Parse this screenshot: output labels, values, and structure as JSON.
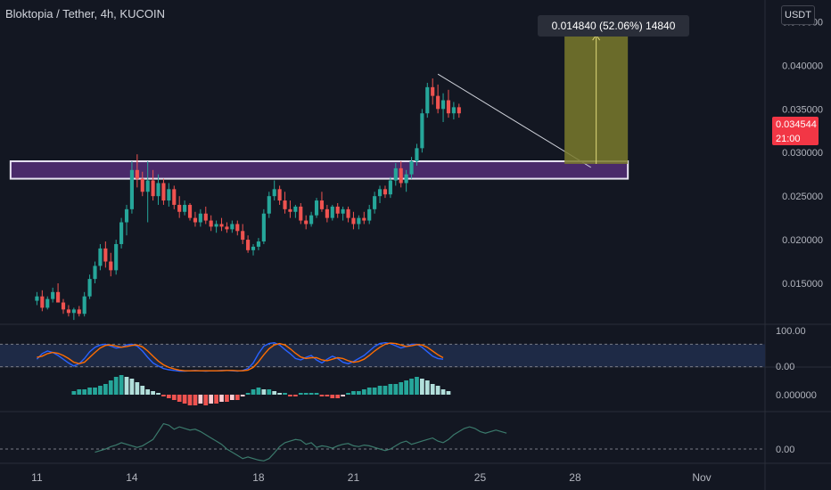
{
  "header": {
    "symbol": "Bloktopia / Tether, 4h, KUCOIN",
    "currency": "USDT"
  },
  "measure_label": "0.014840 (52.06%) 14840",
  "last_price": {
    "value": "0.034544",
    "countdown": "21:00",
    "color": "#f23645"
  },
  "colors": {
    "background": "#131722",
    "up": "#26a69a",
    "down": "#ef5350",
    "zone_fill": "#4a2a6a",
    "zone_border": "#e8e3f2",
    "target_fill": "#7a7a2c",
    "stoch_k": "#2962ff",
    "stoch_d": "#ff6d00",
    "obv_line": "#3b7a6c"
  },
  "chart_data": [
    {
      "type": "candlestick",
      "name": "price",
      "y_ticks": [
        "0.045000",
        "0.040000",
        "0.035000",
        "0.030000",
        "0.025000",
        "0.020000",
        "0.015000"
      ],
      "ylim": [
        0.0103,
        0.0475
      ],
      "x_ticks": [
        "11",
        "14",
        "18",
        "21",
        "25",
        "28",
        "Nov"
      ],
      "x_tick_values": [
        0,
        18,
        42,
        60,
        84,
        102,
        126
      ],
      "xlim": [
        -7,
        138
      ],
      "ohlc": [
        [
          0.013,
          0.014,
          0.0125,
          0.0135
        ],
        [
          0.0135,
          0.0142,
          0.0118,
          0.0122
        ],
        [
          0.0122,
          0.0135,
          0.012,
          0.0132
        ],
        [
          0.0132,
          0.0145,
          0.0128,
          0.014
        ],
        [
          0.014,
          0.015,
          0.013,
          0.0128
        ],
        [
          0.0128,
          0.0132,
          0.0115,
          0.012
        ],
        [
          0.012,
          0.0125,
          0.0112,
          0.0116
        ],
        [
          0.0116,
          0.0122,
          0.0108,
          0.012
        ],
        [
          0.012,
          0.0124,
          0.0112,
          0.0115
        ],
        [
          0.0115,
          0.014,
          0.0112,
          0.0135
        ],
        [
          0.0135,
          0.016,
          0.0132,
          0.0155
        ],
        [
          0.0155,
          0.0175,
          0.015,
          0.017
        ],
        [
          0.017,
          0.0195,
          0.0165,
          0.019
        ],
        [
          0.019,
          0.0198,
          0.0168,
          0.0175
        ],
        [
          0.0175,
          0.0185,
          0.0158,
          0.0165
        ],
        [
          0.0165,
          0.02,
          0.016,
          0.0195
        ],
        [
          0.0195,
          0.0225,
          0.019,
          0.022
        ],
        [
          0.022,
          0.024,
          0.0205,
          0.0235
        ],
        [
          0.0235,
          0.029,
          0.023,
          0.028
        ],
        [
          0.028,
          0.0298,
          0.026,
          0.027
        ],
        [
          0.027,
          0.0278,
          0.025,
          0.0255
        ],
        [
          0.0255,
          0.029,
          0.022,
          0.0268
        ],
        [
          0.0268,
          0.028,
          0.0245,
          0.025
        ],
        [
          0.025,
          0.0275,
          0.024,
          0.0265
        ],
        [
          0.0265,
          0.027,
          0.024,
          0.0245
        ],
        [
          0.0245,
          0.0265,
          0.0238,
          0.0258
        ],
        [
          0.0258,
          0.0262,
          0.0235,
          0.024
        ],
        [
          0.024,
          0.025,
          0.0225,
          0.0232
        ],
        [
          0.0232,
          0.0245,
          0.0228,
          0.024
        ],
        [
          0.024,
          0.0242,
          0.0222,
          0.0225
        ],
        [
          0.0225,
          0.0232,
          0.0215,
          0.022
        ],
        [
          0.022,
          0.0235,
          0.0215,
          0.023
        ],
        [
          0.023,
          0.0238,
          0.0218,
          0.0222
        ],
        [
          0.0222,
          0.0228,
          0.021,
          0.0215
        ],
        [
          0.0215,
          0.0222,
          0.0208,
          0.0218
        ],
        [
          0.0218,
          0.0225,
          0.021,
          0.0215
        ],
        [
          0.0215,
          0.022,
          0.0208,
          0.0212
        ],
        [
          0.0212,
          0.0222,
          0.0208,
          0.0218
        ],
        [
          0.0218,
          0.0222,
          0.0205,
          0.021
        ],
        [
          0.021,
          0.0218,
          0.0195,
          0.02
        ],
        [
          0.02,
          0.0205,
          0.0185,
          0.0188
        ],
        [
          0.0188,
          0.0195,
          0.0182,
          0.0192
        ],
        [
          0.0192,
          0.0202,
          0.0188,
          0.0198
        ],
        [
          0.0198,
          0.0235,
          0.0195,
          0.023
        ],
        [
          0.023,
          0.0255,
          0.0225,
          0.025
        ],
        [
          0.025,
          0.0268,
          0.0245,
          0.0258
        ],
        [
          0.0258,
          0.0262,
          0.024,
          0.0245
        ],
        [
          0.0245,
          0.0255,
          0.023,
          0.0235
        ],
        [
          0.0235,
          0.0245,
          0.0225,
          0.0232
        ],
        [
          0.0232,
          0.024,
          0.0225,
          0.0238
        ],
        [
          0.0238,
          0.0242,
          0.0218,
          0.0222
        ],
        [
          0.0222,
          0.0228,
          0.0212,
          0.0218
        ],
        [
          0.0218,
          0.0232,
          0.0215,
          0.0228
        ],
        [
          0.0228,
          0.0248,
          0.0225,
          0.0245
        ],
        [
          0.0245,
          0.0255,
          0.0232,
          0.0235
        ],
        [
          0.0235,
          0.024,
          0.022,
          0.0225
        ],
        [
          0.0225,
          0.024,
          0.0222,
          0.0238
        ],
        [
          0.0238,
          0.0242,
          0.0225,
          0.023
        ],
        [
          0.023,
          0.0238,
          0.0222,
          0.0235
        ],
        [
          0.0235,
          0.0238,
          0.022,
          0.0225
        ],
        [
          0.0225,
          0.0232,
          0.0212,
          0.0218
        ],
        [
          0.0218,
          0.0228,
          0.0212,
          0.0225
        ],
        [
          0.0225,
          0.0232,
          0.0218,
          0.0222
        ],
        [
          0.0222,
          0.024,
          0.0218,
          0.0235
        ],
        [
          0.0235,
          0.0255,
          0.023,
          0.025
        ],
        [
          0.025,
          0.0262,
          0.0242,
          0.0258
        ],
        [
          0.0258,
          0.0262,
          0.0248,
          0.0252
        ],
        [
          0.0252,
          0.0272,
          0.0248,
          0.0268
        ],
        [
          0.0268,
          0.0288,
          0.0262,
          0.0282
        ],
        [
          0.0282,
          0.029,
          0.026,
          0.0265
        ],
        [
          0.0265,
          0.028,
          0.0255,
          0.0275
        ],
        [
          0.0275,
          0.0295,
          0.027,
          0.029
        ],
        [
          0.029,
          0.031,
          0.0285,
          0.0305
        ],
        [
          0.0305,
          0.035,
          0.03,
          0.0345
        ],
        [
          0.0345,
          0.038,
          0.034,
          0.0375
        ],
        [
          0.0375,
          0.0385,
          0.0355,
          0.0365
        ],
        [
          0.0365,
          0.0378,
          0.0345,
          0.035
        ],
        [
          0.035,
          0.0368,
          0.0335,
          0.036
        ],
        [
          0.036,
          0.0372,
          0.034,
          0.0345
        ],
        [
          0.0345,
          0.0358,
          0.0338,
          0.0352
        ],
        [
          0.0352,
          0.0356,
          0.034,
          0.0345
        ]
      ]
    },
    {
      "type": "line",
      "name": "stochastic",
      "y_ticks": [
        "100.00",
        "0.00"
      ],
      "ylim": [
        0,
        100
      ],
      "series_k": [
        40,
        55,
        62,
        58,
        50,
        40,
        30,
        22,
        28,
        42,
        60,
        72,
        78,
        80,
        75,
        70,
        72,
        78,
        80,
        75,
        62,
        45,
        30,
        22,
        15,
        12,
        10,
        8,
        8,
        9,
        10,
        9,
        8,
        9,
        9,
        10,
        10,
        9,
        8,
        10,
        15,
        30,
        55,
        75,
        82,
        84,
        78,
        66,
        55,
        42,
        38,
        45,
        50,
        38,
        30,
        40,
        48,
        42,
        32,
        28,
        34,
        42,
        50,
        62,
        74,
        82,
        84,
        82,
        76,
        70,
        74,
        80,
        80,
        72,
        60,
        48,
        42,
        40
      ],
      "series_d": [
        45,
        48,
        55,
        58,
        56,
        50,
        42,
        32,
        28,
        32,
        45,
        58,
        70,
        77,
        78,
        75,
        72,
        74,
        77,
        78,
        73,
        62,
        48,
        35,
        25,
        18,
        14,
        11,
        9,
        9,
        9,
        9,
        9,
        9,
        9,
        9,
        10,
        10,
        9,
        9,
        11,
        18,
        33,
        52,
        68,
        78,
        82,
        78,
        68,
        56,
        46,
        42,
        44,
        44,
        38,
        36,
        40,
        44,
        42,
        36,
        32,
        34,
        40,
        50,
        62,
        72,
        80,
        83,
        82,
        78,
        74,
        76,
        79,
        78,
        72,
        62,
        52,
        44
      ]
    },
    {
      "type": "bar",
      "name": "histogram",
      "y_ticks": [
        "0.000000"
      ],
      "ylim": [
        -0.0012,
        0.0012
      ],
      "values": [
        0.0002,
        0.0003,
        0.0003,
        0.0004,
        0.0004,
        0.0005,
        0.0006,
        0.0008,
        0.001,
        0.0011,
        0.001,
        0.0009,
        0.0007,
        0.0005,
        0.0003,
        0.0002,
        0.0001,
        -0.0001,
        -0.0002,
        -0.0003,
        -0.0004,
        -0.0005,
        -0.0006,
        -0.0006,
        -0.0005,
        -0.0006,
        -0.0005,
        -0.0005,
        -0.0004,
        -0.0004,
        -0.0003,
        -0.0003,
        -0.0001,
        0.0001,
        0.0003,
        0.0004,
        0.0003,
        0.0003,
        0.0002,
        0.0001,
        0.0001,
        -0.0001,
        -0.0001,
        0.0001,
        0.0001,
        0.0001,
        0.0001,
        -0.0001,
        -0.0001,
        -0.0002,
        -0.0002,
        -0.0001,
        0.0001,
        0.0002,
        0.0002,
        0.0003,
        0.0004,
        0.0004,
        0.0005,
        0.0005,
        0.0006,
        0.0006,
        0.0007,
        0.0008,
        0.0009,
        0.001,
        0.0009,
        0.0008,
        0.0006,
        0.0005,
        0.0003,
        0.0002
      ]
    },
    {
      "type": "line",
      "name": "oscillator",
      "y_ticks": [
        "0.00"
      ],
      "ylim": [
        -0.45,
        0.45
      ],
      "values": [
        -0.04,
        -0.02,
        0.0,
        0.03,
        0.05,
        0.08,
        0.06,
        0.04,
        0.02,
        0.04,
        0.08,
        0.12,
        0.22,
        0.32,
        0.3,
        0.25,
        0.28,
        0.26,
        0.24,
        0.25,
        0.22,
        0.18,
        0.14,
        0.1,
        0.06,
        0.0,
        -0.04,
        -0.08,
        -0.12,
        -0.1,
        -0.12,
        -0.14,
        -0.15,
        -0.12,
        -0.05,
        0.03,
        0.08,
        0.1,
        0.12,
        0.11,
        0.06,
        0.08,
        0.02,
        0.04,
        0.03,
        0.01,
        0.04,
        0.06,
        0.07,
        0.04,
        0.03,
        0.05,
        0.04,
        0.02,
        0.0,
        -0.02,
        0.0,
        0.04,
        0.08,
        0.1,
        0.06,
        0.08,
        0.1,
        0.12,
        0.14,
        0.1,
        0.08,
        0.12,
        0.18,
        0.22,
        0.26,
        0.28,
        0.26,
        0.22,
        0.2,
        0.22,
        0.24,
        0.22,
        0.2
      ]
    }
  ],
  "drawings": {
    "support_zone": {
      "y_low": 0.027,
      "y_high": 0.029,
      "x_start": -5,
      "x_end": 112
    },
    "trend_line": {
      "x1": 76,
      "y1": 0.039,
      "x2": 105,
      "y2": 0.0283
    },
    "measure_box": {
      "x_start": 100,
      "x_end": 112,
      "y_low": 0.0287,
      "y_high": 0.0435
    }
  }
}
